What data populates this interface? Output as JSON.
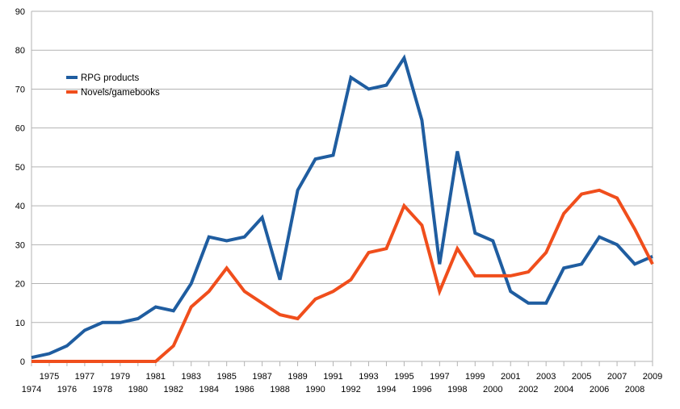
{
  "chart_data": {
    "type": "line",
    "title": "",
    "xlabel": "",
    "ylabel": "",
    "x": [
      1974,
      1975,
      1976,
      1977,
      1978,
      1979,
      1980,
      1981,
      1982,
      1983,
      1984,
      1985,
      1986,
      1987,
      1988,
      1989,
      1990,
      1991,
      1992,
      1993,
      1994,
      1995,
      1996,
      1997,
      1998,
      1999,
      2000,
      2001,
      2002,
      2003,
      2004,
      2005,
      2006,
      2007,
      2008,
      2009
    ],
    "ylim": [
      0,
      90
    ],
    "yticks": [
      0,
      10,
      20,
      30,
      40,
      50,
      60,
      70,
      80,
      90
    ],
    "grid": true,
    "legend_position": "top-left",
    "series": [
      {
        "name": "RPG  products",
        "color": "#1f5da0",
        "values": [
          1,
          2,
          4,
          8,
          10,
          10,
          11,
          14,
          13,
          20,
          32,
          31,
          32,
          37,
          21,
          44,
          52,
          53,
          73,
          70,
          71,
          78,
          62,
          25,
          54,
          33,
          31,
          18,
          15,
          15,
          24,
          25,
          32,
          30,
          25,
          27
        ]
      },
      {
        "name": "Novels/gamebooks",
        "color": "#f04e1c",
        "values": [
          0,
          0,
          0,
          0,
          0,
          0,
          0,
          0,
          4,
          14,
          18,
          24,
          18,
          15,
          12,
          11,
          16,
          18,
          21,
          28,
          29,
          40,
          35,
          18,
          29,
          22,
          22,
          22,
          23,
          28,
          38,
          43,
          44,
          42,
          34,
          25
        ]
      }
    ]
  }
}
